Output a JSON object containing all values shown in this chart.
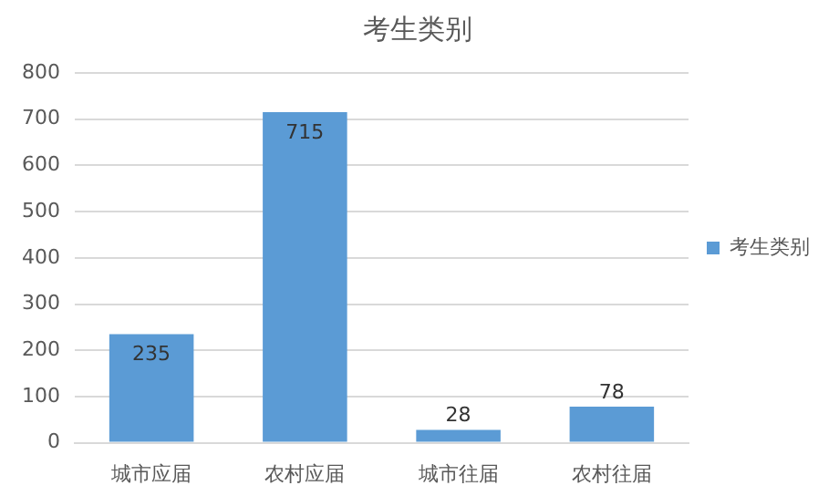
{
  "chart_data": {
    "type": "bar",
    "title": "考生类别",
    "categories": [
      "城市应届",
      "农村应届",
      "城市往届",
      "农村往届"
    ],
    "series": [
      {
        "name": "考生类别",
        "color": "#5b9bd5",
        "values": [
          235,
          715,
          28,
          78
        ]
      }
    ],
    "ylim": [
      0,
      800
    ],
    "yticks": [
      0,
      100,
      200,
      300,
      400,
      500,
      600,
      700,
      800
    ],
    "grid": "y",
    "legend": "right",
    "data_labels": true
  }
}
